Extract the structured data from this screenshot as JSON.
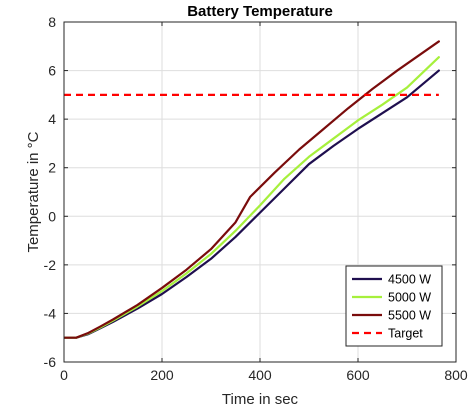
{
  "chart_data": {
    "type": "line",
    "title": "Battery Temperature",
    "xlabel": "Time in sec",
    "ylabel": "Temperature in °C",
    "xlim": [
      0,
      800
    ],
    "ylim": [
      -6,
      8
    ],
    "xticks": [
      0,
      200,
      400,
      600,
      800
    ],
    "yticks": [
      -6,
      -4,
      -2,
      0,
      2,
      4,
      6,
      8
    ],
    "grid": true,
    "legend_position": "bottom-right",
    "series": [
      {
        "name": "4500 W",
        "color": "#1f0f4f",
        "x": [
          0,
          25,
          50,
          75,
          100,
          150,
          200,
          250,
          300,
          350,
          400,
          450,
          500,
          550,
          600,
          650,
          700,
          765
        ],
        "y": [
          -5.0,
          -5.0,
          -4.85,
          -4.6,
          -4.35,
          -3.8,
          -3.2,
          -2.5,
          -1.75,
          -0.85,
          0.15,
          1.15,
          2.15,
          2.9,
          3.6,
          4.25,
          4.9,
          6.0
        ]
      },
      {
        "name": "5000 W",
        "color": "#a6f03c",
        "x": [
          0,
          25,
          50,
          75,
          100,
          150,
          200,
          250,
          300,
          350,
          400,
          450,
          500,
          550,
          600,
          650,
          700,
          765
        ],
        "y": [
          -5.0,
          -5.0,
          -4.82,
          -4.57,
          -4.3,
          -3.72,
          -3.08,
          -2.35,
          -1.55,
          -0.6,
          0.45,
          1.55,
          2.45,
          3.2,
          3.95,
          4.6,
          5.3,
          6.55
        ]
      },
      {
        "name": "5500 W",
        "color": "#7a0c0c",
        "x": [
          0,
          25,
          50,
          75,
          100,
          150,
          200,
          250,
          300,
          350,
          380,
          430,
          480,
          530,
          580,
          630,
          680,
          765
        ],
        "y": [
          -5.0,
          -5.0,
          -4.8,
          -4.53,
          -4.25,
          -3.65,
          -2.95,
          -2.2,
          -1.35,
          -0.25,
          0.8,
          1.8,
          2.75,
          3.6,
          4.45,
          5.25,
          6.0,
          7.2
        ]
      },
      {
        "name": "Target",
        "color": "#ff0000",
        "dashed": true,
        "x": [
          0,
          765
        ],
        "y": [
          5,
          5
        ]
      }
    ]
  }
}
